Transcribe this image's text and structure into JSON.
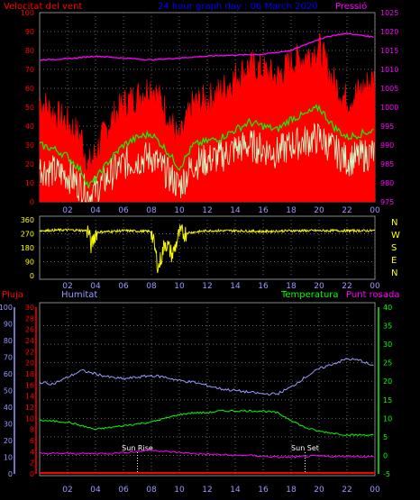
{
  "chart_data": [
    {
      "type": "line",
      "title": "24 hour graph day : 06 March 2020",
      "left_axis_label": "Velocitat del vent",
      "right_axis_label": "Pressió",
      "left_ticks": [
        "0",
        "10",
        "20",
        "30",
        "40",
        "50",
        "60",
        "70",
        "80",
        "90",
        "100"
      ],
      "right_ticks": [
        "975",
        "980",
        "985",
        "990",
        "995",
        "1000",
        "1005",
        "1010",
        "1015",
        "1020",
        "1025"
      ],
      "x_ticks": [
        "02",
        "04",
        "06",
        "08",
        "10",
        "12",
        "14",
        "16",
        "18",
        "20",
        "22",
        "00"
      ],
      "ylim_left": [
        0,
        100
      ],
      "ylim_right": [
        975,
        1025
      ],
      "xlim_hours": [
        0,
        24
      ],
      "series": [
        {
          "color": "#ff0000",
          "x": [
            0,
            1,
            2,
            3,
            3.5,
            4,
            5,
            6,
            7,
            8,
            9,
            10,
            11,
            12,
            13,
            14,
            15,
            16,
            17,
            18,
            19,
            20,
            21,
            22,
            23,
            24
          ],
          "values": [
            50,
            43,
            38,
            30,
            15,
            22,
            38,
            48,
            52,
            58,
            45,
            28,
            48,
            50,
            55,
            62,
            68,
            66,
            62,
            70,
            73,
            78,
            60,
            50,
            55,
            62
          ]
        },
        {
          "color": "#00ff00",
          "x": [
            0,
            1,
            2,
            3,
            3.5,
            4,
            5,
            6,
            7,
            8,
            9,
            10,
            11,
            12,
            13,
            14,
            15,
            16,
            17,
            18,
            19,
            20,
            21,
            22,
            23,
            24
          ],
          "values": [
            30,
            28,
            24,
            16,
            8,
            12,
            22,
            30,
            34,
            36,
            28,
            18,
            30,
            32,
            34,
            38,
            42,
            40,
            38,
            44,
            46,
            50,
            40,
            34,
            36,
            38
          ]
        },
        {
          "color": "#ccffcc",
          "x": [
            0,
            1,
            2,
            3,
            3.5,
            4,
            5,
            6,
            7,
            8,
            9,
            10,
            11,
            12,
            13,
            14,
            15,
            16,
            17,
            18,
            19,
            20,
            21,
            22,
            23,
            24
          ],
          "values": [
            18,
            16,
            14,
            8,
            3,
            6,
            14,
            20,
            22,
            24,
            16,
            8,
            20,
            22,
            24,
            28,
            30,
            28,
            26,
            30,
            32,
            34,
            28,
            22,
            24,
            26
          ]
        },
        {
          "color": "#ff00ff",
          "axis": "right",
          "x": [
            0,
            2,
            4,
            6,
            8,
            10,
            12,
            14,
            16,
            18,
            19,
            20,
            21,
            22,
            23,
            24
          ],
          "values": [
            1012.5,
            1012.8,
            1013.5,
            1013,
            1012.5,
            1013,
            1013.5,
            1013.8,
            1014,
            1015,
            1016.5,
            1018,
            1019,
            1019.5,
            1019,
            1018.5
          ]
        }
      ]
    },
    {
      "type": "line",
      "right_labels": [
        "N",
        "W",
        "S",
        "E",
        "N"
      ],
      "left_ticks": [
        "0",
        "90",
        "180",
        "270",
        "360"
      ],
      "ylim": [
        0,
        360
      ],
      "x_ticks": [
        "02",
        "04",
        "06",
        "08",
        "10",
        "12",
        "14",
        "16",
        "18",
        "20",
        "22",
        "00"
      ],
      "series": [
        {
          "color": "#ffff00",
          "x": [
            0,
            2,
            3.5,
            3.7,
            4,
            6,
            8,
            8.5,
            9,
            9.5,
            10,
            12,
            14,
            16,
            18,
            20,
            22,
            24
          ],
          "values": [
            290,
            295,
            290,
            185,
            280,
            290,
            285,
            50,
            220,
            130,
            270,
            290,
            290,
            285,
            290,
            290,
            290,
            290
          ]
        }
      ]
    },
    {
      "type": "line",
      "labels": {
        "rain": "Pluja",
        "humidity": "Humitat",
        "temperature": "Temperatura",
        "dewpoint": "Punt rosada"
      },
      "ticks_humidity": [
        "0",
        "10",
        "20",
        "30",
        "40",
        "50",
        "60",
        "70",
        "80",
        "90",
        "100"
      ],
      "ticks_rain": [
        "0",
        "2",
        "4",
        "6",
        "8",
        "10",
        "12",
        "14",
        "16",
        "18",
        "20",
        "22",
        "24",
        "26",
        "28",
        "30"
      ],
      "ticks_temp": [
        "-5",
        "0",
        "5",
        "10",
        "15",
        "20",
        "25",
        "30",
        "35",
        "40"
      ],
      "ylim_humidity": [
        0,
        100
      ],
      "ylim_temp": [
        -5,
        40
      ],
      "x_ticks": [
        "02",
        "04",
        "06",
        "08",
        "10",
        "12",
        "14",
        "16",
        "18",
        "20",
        "22",
        "00"
      ],
      "annotations": [
        {
          "text": "Sun Rise",
          "hour": 7
        },
        {
          "text": "Sun Set",
          "hour": 19
        }
      ],
      "series": [
        {
          "color": "#9999ff",
          "name": "Humitat",
          "x": [
            0,
            1,
            2,
            3,
            4,
            5,
            6,
            7,
            8,
            9,
            10,
            11,
            12,
            13,
            14,
            15,
            16,
            17,
            18,
            19,
            20,
            21,
            22,
            23,
            24
          ],
          "values": [
            55,
            54,
            58,
            62,
            60,
            58,
            57,
            58,
            59,
            58,
            56,
            55,
            53,
            51,
            50,
            49,
            48,
            48,
            52,
            58,
            63,
            66,
            69,
            68,
            64
          ]
        },
        {
          "color": "#00ff00",
          "name": "Temperatura",
          "x": [
            0,
            1,
            2,
            3,
            4,
            5,
            6,
            7,
            8,
            9,
            10,
            11,
            12,
            13,
            14,
            15,
            16,
            17,
            18,
            19,
            20,
            21,
            22,
            23,
            24
          ],
          "values": [
            9.5,
            9.2,
            9,
            8,
            7,
            7.5,
            8,
            8.5,
            9,
            10,
            11,
            11.5,
            11.5,
            12,
            12,
            12,
            12,
            11.5,
            9.5,
            7.5,
            6.5,
            6,
            5.5,
            5.5,
            5.5
          ]
        },
        {
          "color": "#ff00ff",
          "name": "Punt rosada",
          "x": [
            0,
            1,
            2,
            3,
            4,
            5,
            6,
            7,
            8,
            9,
            10,
            11,
            12,
            13,
            14,
            15,
            16,
            17,
            18,
            19,
            20,
            21,
            22,
            23,
            24
          ],
          "values": [
            0.5,
            0.5,
            0.5,
            0.5,
            0.5,
            0.5,
            0.8,
            1,
            1.5,
            1,
            0.8,
            0.5,
            0.3,
            0.2,
            0,
            0,
            -0.2,
            -0.5,
            -0.5,
            -0.3,
            -0.2,
            -0.3,
            -0.2,
            -0.3,
            -0.4
          ]
        },
        {
          "color": "#ff0000",
          "name": "Pluja",
          "x": [
            0,
            24
          ],
          "values": [
            0,
            0
          ]
        }
      ]
    }
  ]
}
